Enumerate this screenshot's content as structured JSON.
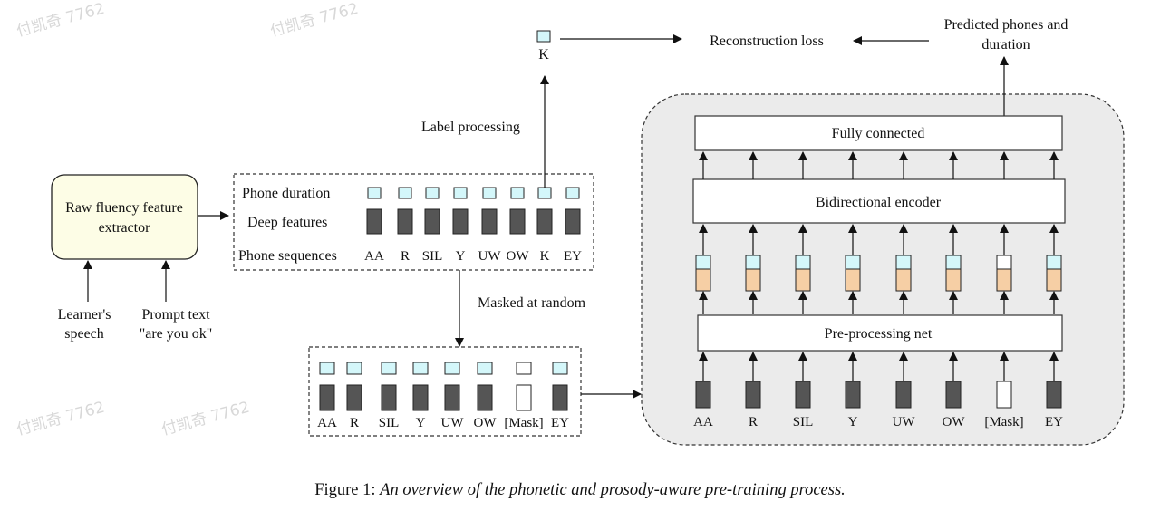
{
  "watermark": "付凯奇 7762",
  "colors": {
    "duration": "#d4f7fa",
    "deep_feature": "#555555",
    "embedding": "#f6cfa5",
    "extractor_fill": "#fdfde6",
    "panel_fill": "#ebebeb"
  },
  "extractor": {
    "line1": "Raw fluency feature",
    "line2": "extractor"
  },
  "inputs": {
    "speech_line1": "Learner's",
    "speech_line2": "speech",
    "prompt_line1": "Prompt text",
    "prompt_line2": "\"are you ok\""
  },
  "features_box": {
    "duration_label": "Phone duration",
    "deep_label": "Deep features",
    "sequence_label": "Phone sequences",
    "phones": [
      "AA",
      "R",
      "SIL",
      "Y",
      "UW",
      "OW",
      "K",
      "EY"
    ]
  },
  "label_processing": "Label processing",
  "target_label": "K",
  "reconstruction_loss": "Reconstruction loss",
  "predicted": {
    "line1": "Predicted phones and",
    "line2": "duration"
  },
  "masked_at_random": "Masked at random",
  "masked_box": {
    "phones": [
      "AA",
      "R",
      "SIL",
      "Y",
      "UW",
      "OW",
      "[Mask]",
      "EY"
    ],
    "masked_index": 6
  },
  "model": {
    "fully_connected": "Fully connected",
    "encoder": "Bidirectional encoder",
    "preprocessing": "Pre-processing net",
    "phones": [
      "AA",
      "R",
      "SIL",
      "Y",
      "UW",
      "OW",
      "[Mask]",
      "EY"
    ],
    "masked_index": 6
  },
  "caption": {
    "prefix": "Figure 1:",
    "text": "An overview of the phonetic and prosody-aware pre-training process."
  }
}
